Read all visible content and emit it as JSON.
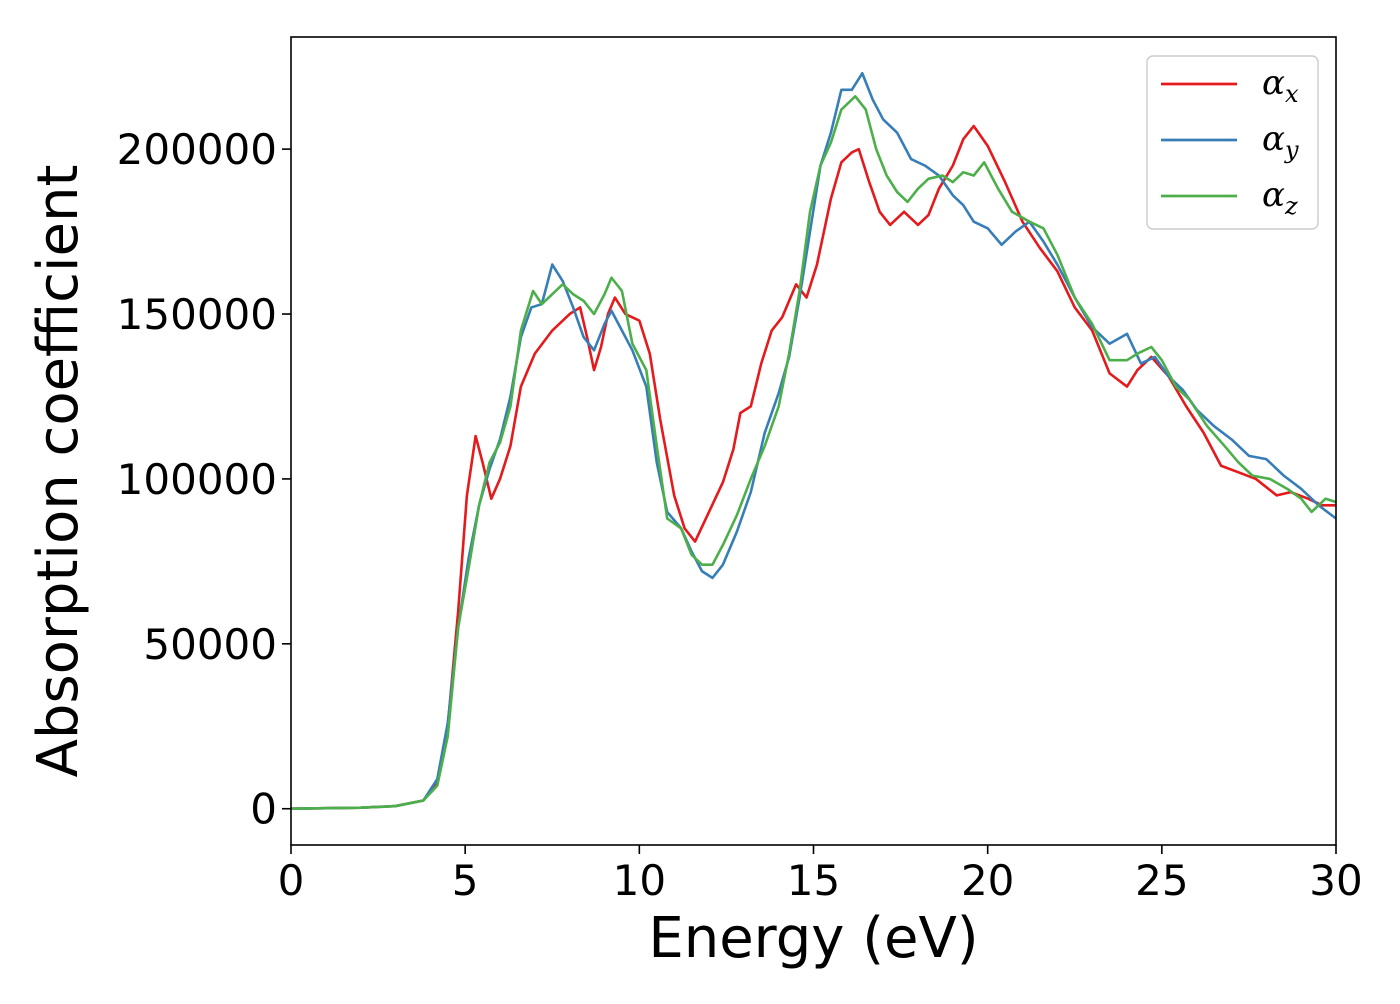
{
  "chart_data": {
    "type": "line",
    "title": "",
    "xlabel": "Energy (eV)",
    "ylabel": "Absorption coefficient",
    "xlim": [
      0,
      30
    ],
    "ylim": [
      -11000,
      234000
    ],
    "x_ticks": [
      0,
      5,
      10,
      15,
      20,
      25,
      30
    ],
    "x_tick_labels": [
      "0",
      "5",
      "10",
      "15",
      "20",
      "25",
      "30"
    ],
    "y_ticks": [
      0,
      50000,
      100000,
      150000,
      200000
    ],
    "y_tick_labels": [
      "0",
      "50000",
      "100000",
      "150000",
      "200000"
    ],
    "grid": false,
    "legend_position": "top-right",
    "series": [
      {
        "name": "αx",
        "symbol": "α",
        "subscript": "x",
        "color": "#e41a1c",
        "points": [
          [
            0,
            0
          ],
          [
            2,
            300
          ],
          [
            3,
            800
          ],
          [
            3.8,
            2500
          ],
          [
            4.2,
            8000
          ],
          [
            4.5,
            25000
          ],
          [
            4.8,
            60000
          ],
          [
            5.05,
            95000
          ],
          [
            5.3,
            113000
          ],
          [
            5.5,
            105000
          ],
          [
            5.75,
            94000
          ],
          [
            6,
            100000
          ],
          [
            6.3,
            110000
          ],
          [
            6.6,
            128000
          ],
          [
            7,
            138000
          ],
          [
            7.5,
            145000
          ],
          [
            8,
            150000
          ],
          [
            8.3,
            152000
          ],
          [
            8.5,
            143000
          ],
          [
            8.7,
            133000
          ],
          [
            8.9,
            140000
          ],
          [
            9.1,
            150000
          ],
          [
            9.3,
            155000
          ],
          [
            9.6,
            150000
          ],
          [
            10,
            148000
          ],
          [
            10.3,
            138000
          ],
          [
            10.6,
            118000
          ],
          [
            11,
            95000
          ],
          [
            11.3,
            85000
          ],
          [
            11.6,
            81000
          ],
          [
            12,
            90000
          ],
          [
            12.4,
            99000
          ],
          [
            12.7,
            109000
          ],
          [
            12.9,
            120000
          ],
          [
            13.2,
            122000
          ],
          [
            13.5,
            135000
          ],
          [
            13.8,
            145000
          ],
          [
            14.1,
            149000
          ],
          [
            14.5,
            159000
          ],
          [
            14.8,
            155000
          ],
          [
            15.1,
            165000
          ],
          [
            15.5,
            185000
          ],
          [
            15.8,
            196000
          ],
          [
            16.1,
            199000
          ],
          [
            16.3,
            200000
          ],
          [
            16.6,
            190000
          ],
          [
            16.9,
            181000
          ],
          [
            17.2,
            177000
          ],
          [
            17.6,
            181000
          ],
          [
            18,
            177000
          ],
          [
            18.3,
            180000
          ],
          [
            18.6,
            188000
          ],
          [
            19,
            195000
          ],
          [
            19.3,
            203000
          ],
          [
            19.6,
            207000
          ],
          [
            20,
            201000
          ],
          [
            20.5,
            190000
          ],
          [
            21,
            178000
          ],
          [
            21.5,
            170000
          ],
          [
            22,
            163000
          ],
          [
            22.5,
            152000
          ],
          [
            23,
            145000
          ],
          [
            23.5,
            132000
          ],
          [
            24,
            128000
          ],
          [
            24.3,
            133000
          ],
          [
            24.7,
            137000
          ],
          [
            25.2,
            131000
          ],
          [
            25.7,
            122000
          ],
          [
            26.2,
            114000
          ],
          [
            26.7,
            104000
          ],
          [
            27.2,
            102000
          ],
          [
            27.7,
            100000
          ],
          [
            28.3,
            95000
          ],
          [
            28.7,
            96000
          ],
          [
            29.2,
            94000
          ],
          [
            29.6,
            92000
          ],
          [
            30,
            92000
          ]
        ]
      },
      {
        "name": "αy",
        "symbol": "α",
        "subscript": "y",
        "color": "#377eb8",
        "points": [
          [
            0,
            0
          ],
          [
            2,
            300
          ],
          [
            3,
            800
          ],
          [
            3.8,
            2500
          ],
          [
            4.2,
            9000
          ],
          [
            4.5,
            26000
          ],
          [
            4.8,
            55000
          ],
          [
            5.1,
            76000
          ],
          [
            5.4,
            92000
          ],
          [
            5.7,
            103000
          ],
          [
            6,
            112000
          ],
          [
            6.3,
            125000
          ],
          [
            6.6,
            143000
          ],
          [
            6.9,
            152000
          ],
          [
            7.2,
            153000
          ],
          [
            7.5,
            165000
          ],
          [
            7.8,
            160000
          ],
          [
            8.1,
            152000
          ],
          [
            8.4,
            143000
          ],
          [
            8.7,
            139000
          ],
          [
            9,
            147000
          ],
          [
            9.2,
            151000
          ],
          [
            9.5,
            145000
          ],
          [
            9.8,
            139000
          ],
          [
            10.2,
            128000
          ],
          [
            10.5,
            105000
          ],
          [
            10.8,
            90000
          ],
          [
            11.2,
            85000
          ],
          [
            11.5,
            78000
          ],
          [
            11.8,
            72000
          ],
          [
            12.1,
            70000
          ],
          [
            12.4,
            74000
          ],
          [
            12.8,
            84000
          ],
          [
            13.2,
            96000
          ],
          [
            13.6,
            114000
          ],
          [
            14,
            126000
          ],
          [
            14.3,
            137000
          ],
          [
            14.6,
            155000
          ],
          [
            14.9,
            175000
          ],
          [
            15.2,
            195000
          ],
          [
            15.5,
            205000
          ],
          [
            15.8,
            218000
          ],
          [
            16.1,
            218000
          ],
          [
            16.4,
            223000
          ],
          [
            16.7,
            215000
          ],
          [
            17,
            209000
          ],
          [
            17.4,
            205000
          ],
          [
            17.8,
            197000
          ],
          [
            18.2,
            195000
          ],
          [
            18.6,
            192000
          ],
          [
            19,
            186000
          ],
          [
            19.3,
            183000
          ],
          [
            19.6,
            178000
          ],
          [
            20,
            176000
          ],
          [
            20.4,
            171000
          ],
          [
            20.8,
            175000
          ],
          [
            21.2,
            178000
          ],
          [
            21.6,
            172000
          ],
          [
            22,
            165000
          ],
          [
            22.5,
            155000
          ],
          [
            23,
            146000
          ],
          [
            23.5,
            141000
          ],
          [
            24,
            144000
          ],
          [
            24.4,
            135000
          ],
          [
            24.8,
            137000
          ],
          [
            25.2,
            131000
          ],
          [
            25.6,
            127000
          ],
          [
            26,
            121000
          ],
          [
            26.5,
            116000
          ],
          [
            27,
            112000
          ],
          [
            27.5,
            107000
          ],
          [
            28,
            106000
          ],
          [
            28.5,
            101000
          ],
          [
            29,
            97000
          ],
          [
            29.5,
            92000
          ],
          [
            30,
            88000
          ]
        ]
      },
      {
        "name": "αz",
        "symbol": "α",
        "subscript": "z",
        "color": "#4daf4a",
        "points": [
          [
            0,
            0
          ],
          [
            2,
            300
          ],
          [
            3,
            800
          ],
          [
            3.8,
            2500
          ],
          [
            4.2,
            7000
          ],
          [
            4.5,
            22000
          ],
          [
            4.8,
            55000
          ],
          [
            5.1,
            73000
          ],
          [
            5.4,
            92000
          ],
          [
            5.7,
            105000
          ],
          [
            6,
            111000
          ],
          [
            6.3,
            122000
          ],
          [
            6.6,
            145000
          ],
          [
            6.95,
            157000
          ],
          [
            7.2,
            153000
          ],
          [
            7.5,
            156000
          ],
          [
            7.8,
            159000
          ],
          [
            8.1,
            156000
          ],
          [
            8.4,
            154000
          ],
          [
            8.7,
            150000
          ],
          [
            9,
            156000
          ],
          [
            9.2,
            161000
          ],
          [
            9.5,
            157000
          ],
          [
            9.8,
            141000
          ],
          [
            10.2,
            133000
          ],
          [
            10.5,
            110000
          ],
          [
            10.8,
            88000
          ],
          [
            11.2,
            85000
          ],
          [
            11.5,
            77000
          ],
          [
            11.8,
            74000
          ],
          [
            12.1,
            74000
          ],
          [
            12.4,
            80000
          ],
          [
            12.8,
            89000
          ],
          [
            13.2,
            100000
          ],
          [
            13.6,
            110000
          ],
          [
            14,
            122000
          ],
          [
            14.3,
            138000
          ],
          [
            14.6,
            157000
          ],
          [
            14.9,
            181000
          ],
          [
            15.2,
            195000
          ],
          [
            15.5,
            202000
          ],
          [
            15.8,
            212000
          ],
          [
            16.2,
            216000
          ],
          [
            16.5,
            212000
          ],
          [
            16.8,
            200000
          ],
          [
            17.1,
            192000
          ],
          [
            17.4,
            187000
          ],
          [
            17.7,
            184000
          ],
          [
            18,
            188000
          ],
          [
            18.3,
            191000
          ],
          [
            18.7,
            192000
          ],
          [
            19,
            190000
          ],
          [
            19.3,
            193000
          ],
          [
            19.6,
            192000
          ],
          [
            19.9,
            196000
          ],
          [
            20.3,
            188000
          ],
          [
            20.7,
            181000
          ],
          [
            21.2,
            178000
          ],
          [
            21.6,
            176000
          ],
          [
            22,
            168000
          ],
          [
            22.5,
            155000
          ],
          [
            23,
            147000
          ],
          [
            23.5,
            136000
          ],
          [
            24,
            136000
          ],
          [
            24.3,
            138000
          ],
          [
            24.7,
            140000
          ],
          [
            25,
            136000
          ],
          [
            25.4,
            128000
          ],
          [
            25.8,
            124000
          ],
          [
            26.3,
            116000
          ],
          [
            26.8,
            110000
          ],
          [
            27.2,
            105000
          ],
          [
            27.6,
            101000
          ],
          [
            28.1,
            100000
          ],
          [
            28.6,
            97000
          ],
          [
            29,
            94000
          ],
          [
            29.3,
            90000
          ],
          [
            29.7,
            94000
          ],
          [
            30,
            93000
          ]
        ]
      }
    ]
  }
}
